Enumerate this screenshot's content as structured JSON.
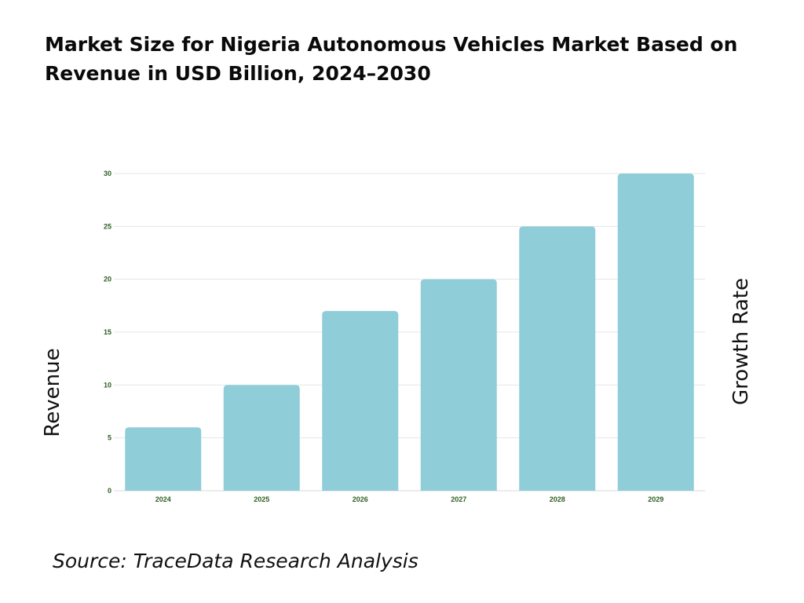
{
  "title": "Market Size for Nigeria Autonomous Vehicles Market Based on Revenue in USD Billion, 2024–2030",
  "source": "Source: TraceData Research Analysis",
  "chart_data": {
    "type": "bar",
    "title": "Market Size for Nigeria Autonomous Vehicles Market Based on Revenue in USD Billion, 2024–2030",
    "categories": [
      "2024",
      "2025",
      "2026",
      "2027",
      "2028",
      "2029"
    ],
    "values": [
      6,
      10,
      17,
      20,
      25,
      30
    ],
    "ylabel": "Revenue",
    "y2label": "Growth Rate",
    "xlabel": "",
    "ylim": [
      0,
      30
    ],
    "yticks": [
      0,
      5,
      10,
      15,
      20,
      25,
      30
    ],
    "grid": true,
    "legend": "none",
    "colors": {
      "bar": "#8fcdd9",
      "tick_label": "#2f5e22",
      "grid": "#e6e6e6"
    }
  }
}
